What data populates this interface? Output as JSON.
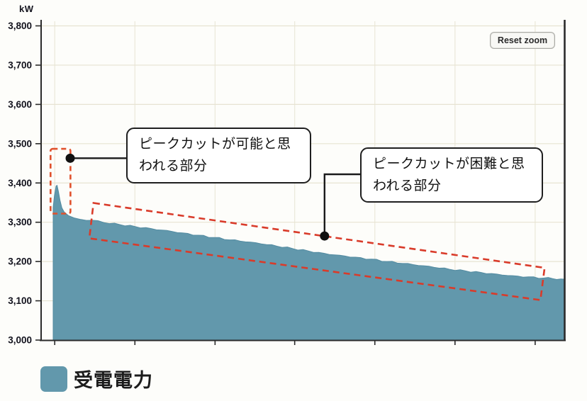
{
  "chart": {
    "reset_zoom_label": "Reset zoom"
  },
  "chart_data": {
    "type": "area",
    "title": "",
    "xlabel": "",
    "ylabel": "kW",
    "ylim": [
      3000,
      3800
    ],
    "y_ticks": [
      3000,
      3100,
      3200,
      3300,
      3400,
      3500,
      3600,
      3700,
      3800
    ],
    "x_tick_labels": [],
    "x_ticks_pct": [
      2.6,
      17.9,
      33.2,
      48.4,
      63.7,
      79.0,
      94.3
    ],
    "grid": true,
    "legend_position": "bottom-left",
    "series": [
      {
        "name": "受電電力",
        "color": "#6298ac",
        "points_pct_kw": [
          [
            2.3,
            3338
          ],
          [
            2.55,
            3368
          ],
          [
            2.85,
            3392
          ],
          [
            3.05,
            3394
          ],
          [
            3.3,
            3378
          ],
          [
            3.6,
            3356
          ],
          [
            3.95,
            3337
          ],
          [
            4.4,
            3326
          ],
          [
            5.2,
            3317
          ],
          [
            6.3,
            3311
          ],
          [
            7.6,
            3307
          ],
          [
            9.7,
            3305
          ],
          [
            12,
            3299
          ],
          [
            15,
            3294
          ],
          [
            18,
            3289
          ],
          [
            21,
            3284
          ],
          [
            24,
            3279
          ],
          [
            27,
            3273
          ],
          [
            30,
            3267
          ],
          [
            33,
            3261
          ],
          [
            36,
            3255
          ],
          [
            39,
            3250
          ],
          [
            42,
            3245
          ],
          [
            45,
            3239
          ],
          [
            48,
            3233
          ],
          [
            51,
            3227
          ],
          [
            54,
            3221
          ],
          [
            57,
            3216
          ],
          [
            60,
            3211
          ],
          [
            63,
            3206
          ],
          [
            66,
            3200
          ],
          [
            69,
            3195
          ],
          [
            72,
            3190
          ],
          [
            75,
            3185
          ],
          [
            78,
            3180
          ],
          [
            81,
            3176
          ],
          [
            84,
            3172
          ],
          [
            87,
            3168
          ],
          [
            90,
            3164
          ],
          [
            93,
            3161
          ],
          [
            96,
            3158
          ],
          [
            100,
            3155
          ]
        ]
      }
    ],
    "annotations": [
      {
        "label": "ピークカットが可能と思われる部分",
        "dot": {
          "x_pct": 5.55,
          "kw": 3463
        }
      },
      {
        "label": "ピークカットが困難と思われる部分",
        "dot": {
          "x_pct": 54.1,
          "kw": 3265
        }
      }
    ],
    "highlight_regions": [
      {
        "shape": "rect",
        "x_pct": [
          1.8,
          5.6
        ],
        "kw": [
          3322,
          3487
        ],
        "style": "dashed",
        "color": "#e0512c"
      },
      {
        "shape": "polygon",
        "style": "dashed",
        "color": "#d93b2a",
        "corners_pct_kw": [
          [
            10.0,
            3349
          ],
          [
            96.1,
            3184
          ],
          [
            95.3,
            3102
          ],
          [
            9.2,
            3259
          ]
        ]
      }
    ]
  }
}
